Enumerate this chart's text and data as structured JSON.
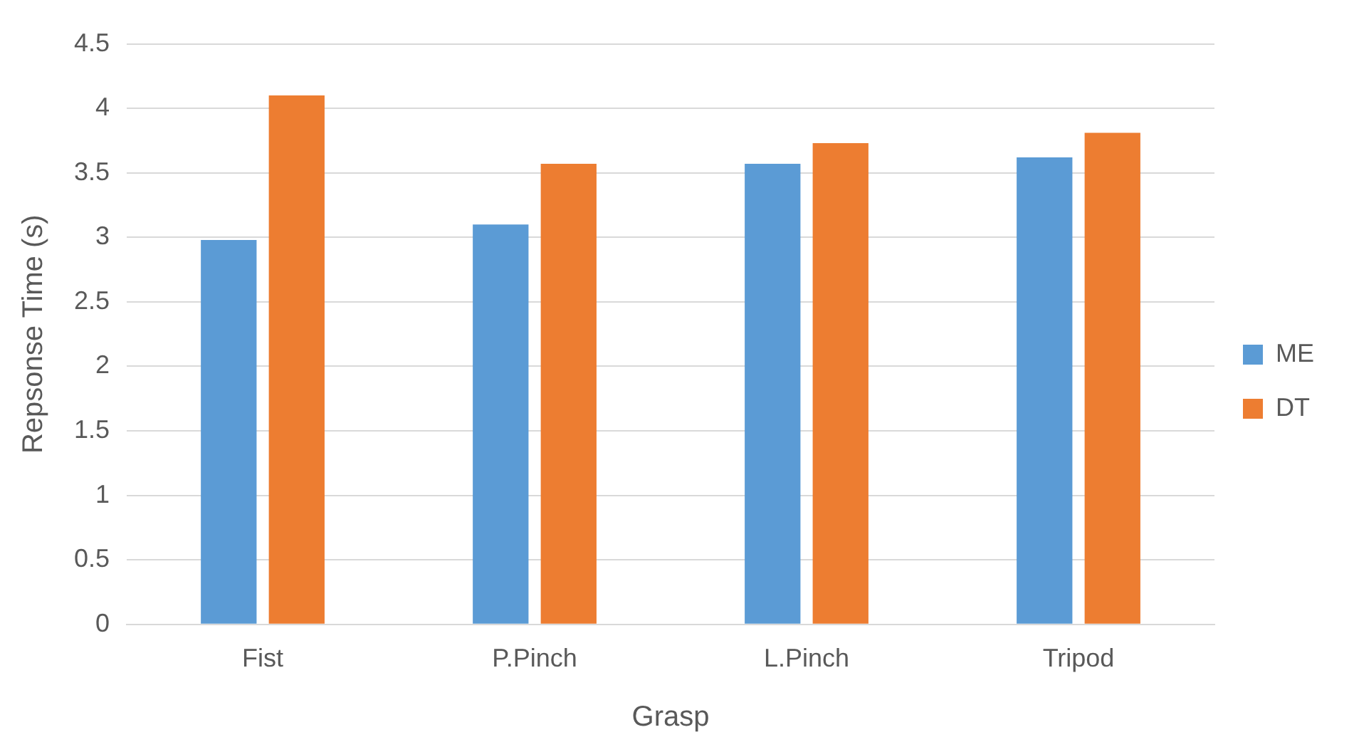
{
  "chart_data": {
    "type": "bar",
    "xlabel": "Grasp",
    "ylabel": "Repsonse Time (s)",
    "categories": [
      "Fist",
      "P.Pinch",
      "L.Pinch",
      "Tripod"
    ],
    "series": [
      {
        "name": "ME",
        "color": "#5b9bd5",
        "values": [
          2.98,
          3.1,
          3.57,
          3.62
        ]
      },
      {
        "name": "DT",
        "color": "#ed7d31",
        "values": [
          4.1,
          3.57,
          3.73,
          3.81
        ]
      }
    ],
    "ylim": [
      0,
      4.5
    ],
    "yticks": [
      0,
      0.5,
      1,
      1.5,
      2,
      2.5,
      3,
      3.5,
      4,
      4.5
    ],
    "grid": "y",
    "legend": "right"
  }
}
